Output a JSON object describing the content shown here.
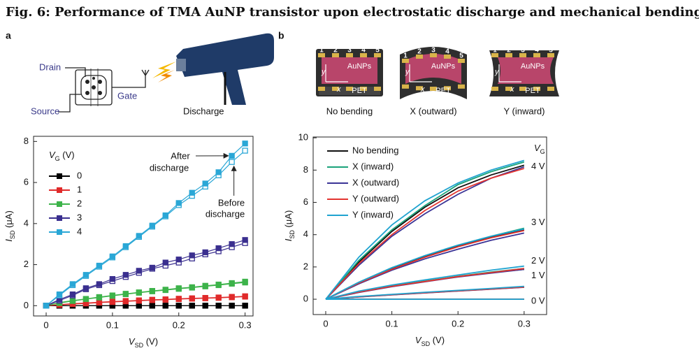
{
  "figure": {
    "title": "Fig. 6: Performance of TMA AuNP transistor upon electrostatic discharge and mechanical bending.",
    "panels": [
      "a",
      "b"
    ],
    "circuit": {
      "drain": "Drain",
      "source": "Source",
      "gate": "Gate",
      "discharge": "Discharge"
    },
    "samples": {
      "electrodes": [
        "1",
        "2",
        "3",
        "4",
        "5"
      ],
      "film": "AuNPs",
      "substrate": "PET",
      "x_axis": "x",
      "y_axis": "y",
      "captions": [
        "No bending",
        "X (outward)",
        "Y (inward)"
      ]
    }
  },
  "chart_data": [
    {
      "type": "line",
      "markers": true,
      "xlabel": {
        "main": "V",
        "sub": "SD",
        "rest": " (V)"
      },
      "ylabel": {
        "main": "I",
        "sub": "SD",
        "rest": " (μA)"
      },
      "legend_title": {
        "main": "V",
        "sub": "G",
        "rest": " (V)"
      },
      "x": [
        0,
        0.02,
        0.04,
        0.06,
        0.08,
        0.1,
        0.12,
        0.14,
        0.16,
        0.18,
        0.2,
        0.22,
        0.24,
        0.26,
        0.28,
        0.3
      ],
      "xlim": [
        -0.019,
        0.312
      ],
      "ylim": [
        -0.5,
        8.25
      ],
      "xticks": [
        0,
        0.1,
        0.2,
        0.3
      ],
      "yticks": [
        0,
        2,
        4,
        6,
        8
      ],
      "series": [
        {
          "name": "0",
          "color": "#000000",
          "values": [
            0,
            0,
            0,
            0,
            0,
            0,
            0,
            0,
            0,
            0,
            0,
            0,
            0,
            0,
            0,
            0
          ],
          "values_before": [
            0,
            0,
            0,
            0,
            0,
            0,
            0,
            0,
            0,
            0,
            0,
            0,
            0,
            0,
            0,
            0
          ]
        },
        {
          "name": "1",
          "color": "#e02a2a",
          "values": [
            0,
            0.05,
            0.1,
            0.13,
            0.17,
            0.2,
            0.23,
            0.26,
            0.29,
            0.31,
            0.34,
            0.36,
            0.38,
            0.4,
            0.43,
            0.46
          ],
          "values_before": [
            0,
            0.04,
            0.08,
            0.11,
            0.15,
            0.18,
            0.21,
            0.24,
            0.27,
            0.29,
            0.32,
            0.34,
            0.36,
            0.38,
            0.41,
            0.44
          ]
        },
        {
          "name": "2",
          "color": "#3db34a",
          "values": [
            0,
            0.15,
            0.25,
            0.33,
            0.42,
            0.5,
            0.58,
            0.65,
            0.72,
            0.78,
            0.85,
            0.9,
            0.97,
            1.03,
            1.1,
            1.17
          ],
          "values_before": [
            0,
            0.13,
            0.23,
            0.32,
            0.4,
            0.48,
            0.56,
            0.63,
            0.7,
            0.76,
            0.82,
            0.88,
            0.94,
            1.0,
            1.07,
            1.13
          ]
        },
        {
          "name": "3",
          "color": "#3a2f8f",
          "values": [
            0,
            0.3,
            0.55,
            0.85,
            1.05,
            1.3,
            1.5,
            1.7,
            1.85,
            2.1,
            2.25,
            2.45,
            2.6,
            2.8,
            3.0,
            3.2
          ],
          "values_before": [
            0,
            0.25,
            0.5,
            0.8,
            1.0,
            1.2,
            1.4,
            1.6,
            1.8,
            1.95,
            2.1,
            2.3,
            2.5,
            2.65,
            2.85,
            3.05
          ]
        },
        {
          "name": "4",
          "color": "#2aa7d6",
          "values": [
            0,
            0.55,
            1.05,
            1.5,
            1.95,
            2.4,
            2.9,
            3.4,
            3.9,
            4.4,
            5.0,
            5.5,
            5.95,
            6.5,
            7.3,
            7.9
          ],
          "values_before": [
            0,
            0.5,
            1.0,
            1.45,
            1.9,
            2.35,
            2.85,
            3.35,
            3.85,
            4.35,
            4.9,
            5.35,
            5.8,
            6.35,
            7.0,
            7.55
          ]
        }
      ],
      "annotations": [
        {
          "text": [
            "After",
            "discharge"
          ]
        },
        {
          "text": [
            "Before",
            "discharge"
          ]
        }
      ]
    },
    {
      "type": "line",
      "markers": false,
      "xlabel": {
        "main": "V",
        "sub": "SD",
        "rest": " (V)"
      },
      "ylabel": {
        "main": "I",
        "sub": "SD",
        "rest": " (μA)"
      },
      "group_title": {
        "main": "V",
        "sub": "G"
      },
      "group_labels": [
        "0 V",
        "1 V",
        "2 V",
        "3 V",
        "4 V"
      ],
      "x": [
        0,
        0.05,
        0.1,
        0.15,
        0.2,
        0.25,
        0.3
      ],
      "xlim": [
        -0.019,
        0.334
      ],
      "ylim": [
        -0.95,
        10.05
      ],
      "xticks": [
        0,
        0.1,
        0.2,
        0.3
      ],
      "yticks": [
        0,
        2,
        4,
        6,
        8,
        10
      ],
      "series": [
        {
          "name": "No bending",
          "color": "#111111",
          "values": [
            [
              0,
              0,
              0,
              0,
              0,
              0,
              0
            ],
            [
              0,
              0.15,
              0.28,
              0.4,
              0.52,
              0.63,
              0.75
            ],
            [
              0,
              0.45,
              0.8,
              1.1,
              1.4,
              1.65,
              1.85
            ],
            [
              0,
              1.0,
              1.9,
              2.65,
              3.3,
              3.85,
              4.3
            ],
            [
              0,
              2.3,
              4.2,
              5.7,
              6.9,
              7.7,
              8.3
            ]
          ]
        },
        {
          "name": "X (inward)",
          "color": "#1aa37a",
          "values": [
            [
              0,
              0,
              0,
              0,
              0,
              0,
              0
            ],
            [
              0,
              0.16,
              0.29,
              0.41,
              0.53,
              0.64,
              0.76
            ],
            [
              0,
              0.45,
              0.82,
              1.12,
              1.42,
              1.68,
              1.9
            ],
            [
              0,
              1.05,
              1.95,
              2.7,
              3.35,
              3.9,
              4.4
            ],
            [
              0,
              2.4,
              4.3,
              5.8,
              7.1,
              7.9,
              8.5
            ]
          ]
        },
        {
          "name": "X (outward)",
          "color": "#3b3496",
          "values": [
            [
              0,
              0,
              0,
              0,
              0,
              0,
              0
            ],
            [
              0,
              0.14,
              0.27,
              0.39,
              0.51,
              0.62,
              0.74
            ],
            [
              0,
              0.42,
              0.78,
              1.08,
              1.38,
              1.62,
              1.85
            ],
            [
              0,
              0.95,
              1.8,
              2.5,
              3.1,
              3.65,
              4.1
            ],
            [
              0,
              2.1,
              3.9,
              5.3,
              6.5,
              7.5,
              8.2
            ]
          ]
        },
        {
          "name": "Y (outward)",
          "color": "#e3342f",
          "values": [
            [
              0,
              0,
              0,
              0,
              0,
              0,
              0
            ],
            [
              0,
              0.15,
              0.28,
              0.4,
              0.52,
              0.63,
              0.75
            ],
            [
              0,
              0.44,
              0.8,
              1.1,
              1.4,
              1.65,
              1.9
            ],
            [
              0,
              1.0,
              1.85,
              2.6,
              3.25,
              3.8,
              4.25
            ],
            [
              0,
              2.2,
              4.0,
              5.5,
              6.7,
              7.5,
              8.1
            ]
          ]
        },
        {
          "name": "Y (inward)",
          "color": "#1fa3d0",
          "values": [
            [
              0,
              0,
              0,
              0,
              0,
              0,
              0
            ],
            [
              0,
              0.17,
              0.3,
              0.43,
              0.55,
              0.67,
              0.8
            ],
            [
              0,
              0.5,
              0.88,
              1.2,
              1.5,
              1.8,
              2.05
            ],
            [
              0,
              1.05,
              1.95,
              2.7,
              3.35,
              3.9,
              4.35
            ],
            [
              0,
              2.6,
              4.6,
              6.1,
              7.2,
              8.0,
              8.6
            ]
          ]
        }
      ]
    }
  ]
}
